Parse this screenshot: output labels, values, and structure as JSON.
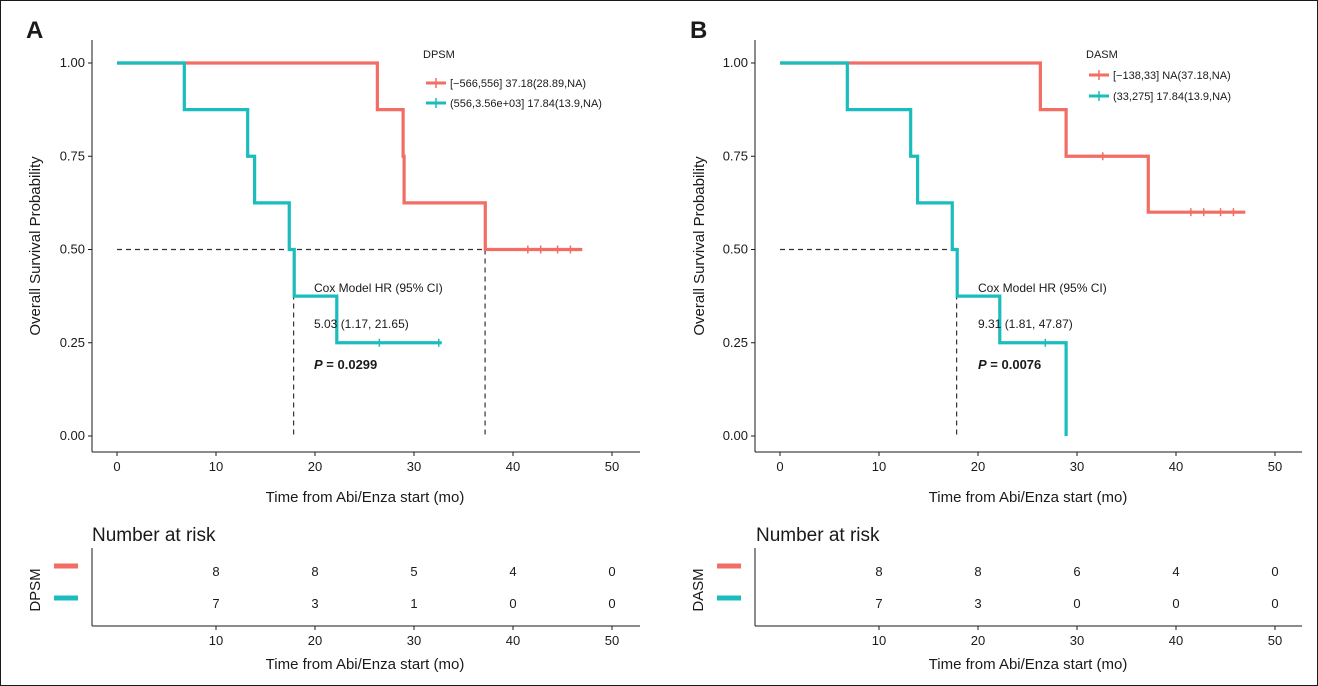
{
  "colors": {
    "group1": "#f26d63",
    "group2": "#1bbcbd",
    "median_line": "#333333"
  },
  "chart_data": [
    {
      "type": "line",
      "panel": "A",
      "variable": "DPSM",
      "xlabel": "Time from Abi/Enza start (mo)",
      "ylabel": "Overall Survival Probability",
      "xlim": [
        0,
        50
      ],
      "ylim": [
        0,
        1
      ],
      "xticks": [
        0,
        10,
        20,
        30,
        40,
        50
      ],
      "yticks": [
        "0.00",
        "0.25",
        "0.50",
        "0.75",
        "1.00"
      ],
      "grid": false,
      "legend_position": "top-right",
      "legend_title": "DPSM",
      "series": [
        {
          "name": "[−566,556] 37.18(28.89,NA)",
          "color": "#f26d63",
          "steps": [
            [
              0,
              1.0
            ],
            [
              26.3,
              0.875
            ],
            [
              28.9,
              0.75
            ],
            [
              29.0,
              0.625
            ],
            [
              37.2,
              0.5
            ],
            [
              47,
              0.5
            ]
          ],
          "censor": [
            41.5,
            42.8,
            44.5,
            45.8
          ]
        },
        {
          "name": "(556,3.56e+03] 17.84(13.9,NA)",
          "color": "#1bbcbd",
          "steps": [
            [
              0,
              1.0
            ],
            [
              6.8,
              0.875
            ],
            [
              13.2,
              0.75
            ],
            [
              13.9,
              0.625
            ],
            [
              17.4,
              0.5
            ],
            [
              17.9,
              0.375
            ],
            [
              22.2,
              0.25
            ],
            [
              32.8,
              0.25
            ]
          ],
          "censor": [
            26.5,
            32.5
          ]
        }
      ],
      "medians": [
        17.84,
        37.18
      ],
      "annotation": {
        "label": "Cox Model HR (95% CI)",
        "hr": "5.03 (1.17, 21.65)",
        "p": "= 0.0299"
      },
      "risk_table": {
        "title": "Number at risk",
        "xlabel": "Time from Abi/Enza start (mo)",
        "xticks": [
          10,
          20,
          30,
          40,
          50
        ],
        "rows": [
          [
            "8",
            "8",
            "5",
            "4",
            "0"
          ],
          [
            "7",
            "3",
            "1",
            "0",
            "0"
          ]
        ]
      }
    },
    {
      "type": "line",
      "panel": "B",
      "variable": "DASM",
      "xlabel": "Time from Abi/Enza start (mo)",
      "ylabel": "Overall Survival Probability",
      "xlim": [
        0,
        50
      ],
      "ylim": [
        0,
        1
      ],
      "xticks": [
        0,
        10,
        20,
        30,
        40,
        50
      ],
      "yticks": [
        "0.00",
        "0.25",
        "0.50",
        "0.75",
        "1.00"
      ],
      "grid": false,
      "legend_position": "top-right",
      "legend_title": "DASM",
      "series": [
        {
          "name": "[−138,33] NA(37.18,NA)",
          "color": "#f26d63",
          "steps": [
            [
              0,
              1.0
            ],
            [
              26.3,
              0.875
            ],
            [
              28.9,
              0.75
            ],
            [
              37.2,
              0.6
            ],
            [
              47,
              0.6
            ]
          ],
          "censor": [
            32.6,
            41.5,
            42.8,
            44.5,
            45.8
          ]
        },
        {
          "name": "(33,275] 17.84(13.9,NA)",
          "color": "#1bbcbd",
          "steps": [
            [
              0,
              1.0
            ],
            [
              6.8,
              0.875
            ],
            [
              13.2,
              0.75
            ],
            [
              13.9,
              0.625
            ],
            [
              17.4,
              0.5
            ],
            [
              17.9,
              0.375
            ],
            [
              22.2,
              0.25
            ],
            [
              28.9,
              0.0
            ]
          ],
          "censor": [
            26.8
          ]
        }
      ],
      "medians": [
        17.84
      ],
      "annotation": {
        "label": "Cox Model HR (95% CI)",
        "hr": "9.31 (1.81, 47.87)",
        "p": "= 0.0076"
      },
      "risk_table": {
        "title": "Number at risk",
        "xlabel": "Time from Abi/Enza start (mo)",
        "xticks": [
          10,
          20,
          30,
          40,
          50
        ],
        "rows": [
          [
            "8",
            "8",
            "6",
            "4",
            "0"
          ],
          [
            "7",
            "3",
            "0",
            "0",
            "0"
          ]
        ]
      }
    }
  ]
}
